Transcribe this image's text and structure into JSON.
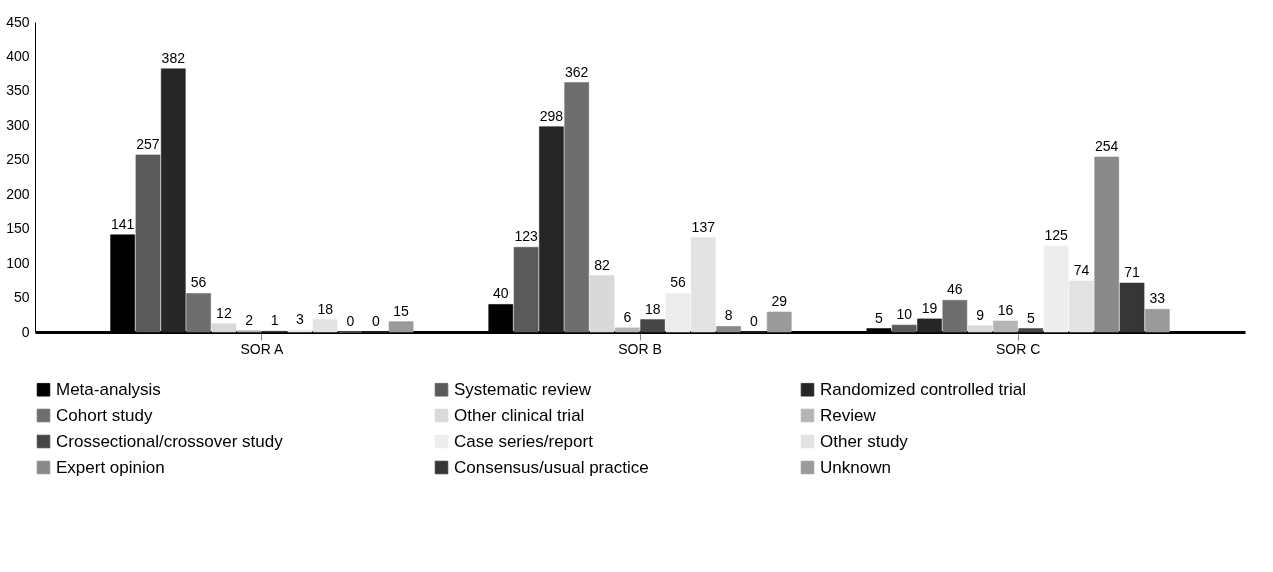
{
  "chart_data": {
    "type": "bar",
    "categories": [
      "SOR A",
      "SOR B",
      "SOR C"
    ],
    "series": [
      {
        "name": "Meta-analysis",
        "color": "#000000",
        "values": [
          141,
          40,
          5
        ]
      },
      {
        "name": "Systematic review",
        "color": "#5a5a5a",
        "values": [
          257,
          123,
          10
        ]
      },
      {
        "name": "Randomized controlled trial",
        "color": "#262626",
        "values": [
          382,
          298,
          19
        ]
      },
      {
        "name": "Cohort study",
        "color": "#6e6e6e",
        "values": [
          56,
          362,
          46
        ]
      },
      {
        "name": "Other clinical trial",
        "color": "#d9d9d9",
        "values": [
          12,
          82,
          9
        ]
      },
      {
        "name": "Review",
        "color": "#b5b5b5",
        "values": [
          2,
          6,
          16
        ]
      },
      {
        "name": "Crossectional/crossover study",
        "color": "#464646",
        "values": [
          1,
          18,
          5
        ]
      },
      {
        "name": "Case series/report",
        "color": "#ededed",
        "values": [
          3,
          56,
          125
        ]
      },
      {
        "name": "Other study",
        "color": "#e3e3e3",
        "values": [
          18,
          137,
          74
        ]
      },
      {
        "name": "Expert opinion",
        "color": "#8a8a8a",
        "values": [
          0,
          8,
          254
        ]
      },
      {
        "name": "Consensus/usual practice",
        "color": "#363636",
        "values": [
          0,
          0,
          71
        ]
      },
      {
        "name": "Unknown",
        "color": "#9a9a9a",
        "values": [
          15,
          29,
          33
        ]
      }
    ],
    "ylim": [
      0,
      450
    ],
    "yticks": [
      0,
      50,
      100,
      150,
      200,
      250,
      300,
      350,
      400,
      450
    ],
    "data_labels": true,
    "grid": false,
    "legend": "bottom"
  }
}
